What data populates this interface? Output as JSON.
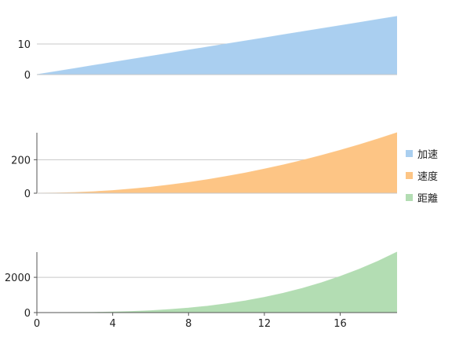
{
  "chart_data": {
    "type": "area",
    "x": [
      0,
      1,
      2,
      3,
      4,
      5,
      6,
      7,
      8,
      9,
      10,
      11,
      12,
      13,
      14,
      15,
      16,
      17,
      18,
      19
    ],
    "x_ticks": [
      "0",
      "4",
      "8",
      "12",
      "16"
    ],
    "xlim": [
      0,
      19
    ],
    "grid": "horizontal",
    "legend_position": "right",
    "series": [
      {
        "name": "加速",
        "color": "#aacff0",
        "values": [
          0,
          1,
          2,
          3,
          4,
          5,
          6,
          7,
          8,
          9,
          10,
          11,
          12,
          13,
          14,
          15,
          16,
          17,
          18,
          19
        ],
        "ylim": [
          0,
          20
        ],
        "y_ticks": [
          "0",
          "10"
        ],
        "show_axis_line": false
      },
      {
        "name": "速度",
        "color": "#fdc585",
        "values": [
          0,
          1,
          4,
          9,
          16,
          25,
          36,
          49,
          64,
          81,
          100,
          121,
          144,
          169,
          196,
          225,
          256,
          289,
          324,
          361
        ],
        "ylim": [
          0,
          361
        ],
        "y_ticks": [
          "0",
          "200"
        ],
        "show_axis_line": true
      },
      {
        "name": "距離",
        "color": "#b3ddb3",
        "values": [
          0,
          0.5,
          4,
          13.5,
          32,
          62.5,
          108,
          171.5,
          256,
          364.5,
          500,
          665.5,
          864,
          1098.5,
          1372,
          1687.5,
          2048,
          2456.5,
          2916,
          3429.5
        ],
        "ylim": [
          0,
          3429.5
        ],
        "y_ticks": [
          "0",
          "2000"
        ],
        "show_axis_line": true
      }
    ]
  }
}
